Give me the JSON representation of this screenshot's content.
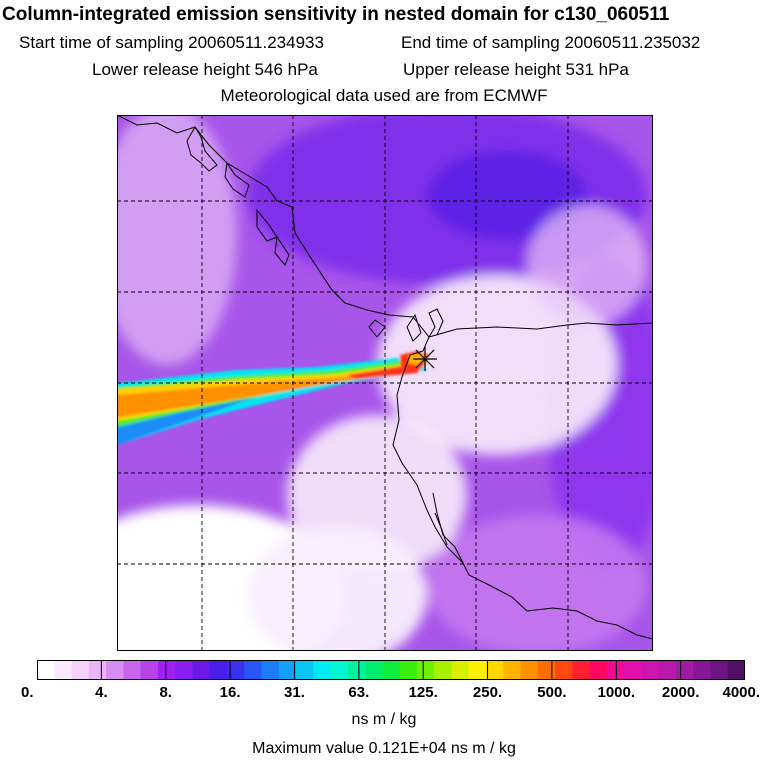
{
  "header": {
    "title": "Column-integrated emission sensitivity in nested domain for c130_060511",
    "start_label": "Start time of sampling 20060511.234933",
    "end_label": "End time of sampling 20060511.235032",
    "lower_label": "Lower release height  546 hPa",
    "upper_label": "Upper release height  531 hPa",
    "met_label": "Meteorological data used are from ECMWF"
  },
  "map": {
    "release_marker": "release-point-star",
    "colors": {
      "background": "#a855ea",
      "dark_region": "#6a18e6",
      "light_region": "#f3e6fb",
      "white_region": "#ffffff",
      "coastline": "#000000",
      "grid": "#000000"
    }
  },
  "colorbar": {
    "ticks": [
      "0.",
      "4.",
      "8.",
      "16.",
      "31.",
      "63.",
      "125.",
      "250.",
      "500.",
      "1000.",
      "2000.",
      "4000."
    ],
    "colors": [
      "#ffffff",
      "#fbeafd",
      "#f5d2fb",
      "#ecb5f7",
      "#d98cf3",
      "#c866ee",
      "#b744ea",
      "#a020f0",
      "#8a1ef0",
      "#6a18e6",
      "#4a1ee8",
      "#3a30f0",
      "#2a55f6",
      "#1e7cf8",
      "#14a0f8",
      "#0ac6f6",
      "#00eaf2",
      "#00f5d0",
      "#00f2a0",
      "#00ee70",
      "#10ec40",
      "#38ee10",
      "#70f000",
      "#a8f000",
      "#d8f000",
      "#fff000",
      "#ffd800",
      "#ffb400",
      "#ff9000",
      "#ff6c00",
      "#ff4810",
      "#ff2030",
      "#ff0860",
      "#f00c90",
      "#e010a8",
      "#cc14b0",
      "#b818ac",
      "#a01aa4",
      "#861894",
      "#6c1480",
      "#501068"
    ],
    "units": "ns m / kg",
    "max_value": "Maximum value  0.121E+04 ns m / kg"
  }
}
